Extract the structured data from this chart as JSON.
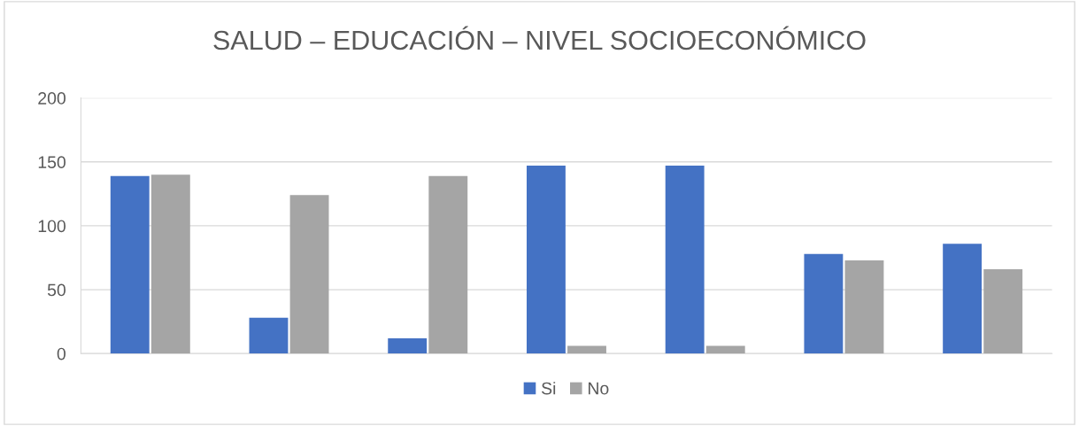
{
  "chart_data": {
    "type": "bar",
    "title": "SALUD – EDUCACIÓN – NIVEL SOCIOECONÓMICO",
    "categories": [
      null,
      null,
      null,
      null,
      null,
      null,
      null
    ],
    "series": [
      {
        "name": "Si",
        "color": "#4472c4",
        "values": [
          139,
          28,
          12,
          147,
          147,
          78,
          86
        ]
      },
      {
        "name": "No",
        "color": "#a5a5a5",
        "values": [
          140,
          124,
          139,
          6,
          6,
          73,
          66
        ]
      }
    ],
    "ylim": [
      0,
      200
    ],
    "yticks": [
      0,
      50,
      100,
      150,
      200
    ],
    "grid": "y",
    "legend": "bottom"
  }
}
